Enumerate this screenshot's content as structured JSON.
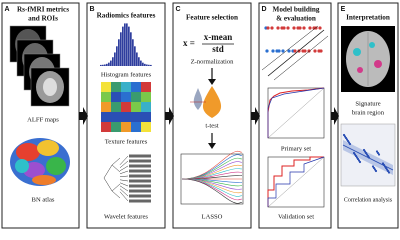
{
  "panels": [
    {
      "label": "A",
      "title": [
        "Rs-fMRI metrics",
        "and ROIs"
      ],
      "captions": [
        "ALFF maps",
        "BN atlas"
      ]
    },
    {
      "label": "B",
      "title": [
        "Radiomics features"
      ],
      "captions": [
        "Histogram features",
        "Texture features",
        "Wavelet features"
      ]
    },
    {
      "label": "C",
      "title": [
        "Feature selection"
      ],
      "formula": {
        "lhs": "x =",
        "numerator": "x-mean",
        "denominator": "std"
      },
      "captions": [
        "Z-normalization",
        "t-test",
        "LASSO"
      ]
    },
    {
      "label": "D",
      "title": [
        "Model building",
        "& evaluation"
      ],
      "captions": [
        "Primary set",
        "Validation set"
      ]
    },
    {
      "label": "E",
      "title": [
        "Interpretation"
      ],
      "captions": [
        "Signature",
        "brain region",
        "Correlation analysis"
      ]
    }
  ]
}
